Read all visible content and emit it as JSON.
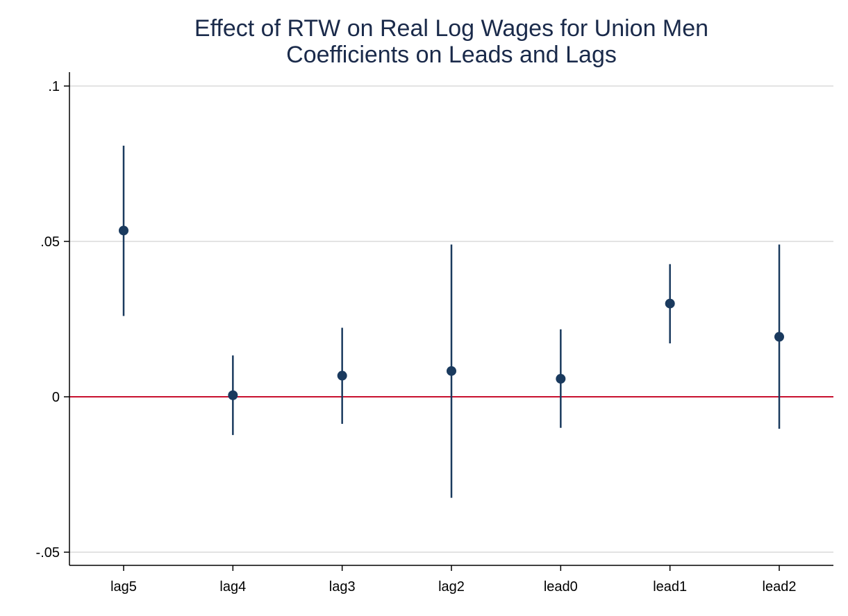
{
  "chart_data": {
    "type": "scatter",
    "title": "Effect of RTW on Real Log Wages for Union Men",
    "subtitle": "Coefficients on Leads and Lags",
    "xlabel": "",
    "ylabel": "",
    "categories": [
      "lag5",
      "lag4",
      "lag3",
      "lag2",
      "lead0",
      "lead1",
      "lead2"
    ],
    "values": [
      0.0535,
      0.0005,
      0.0068,
      0.0083,
      0.0058,
      0.03,
      0.0193
    ],
    "ci_lower": [
      0.026,
      -0.0123,
      -0.0087,
      -0.0325,
      -0.01,
      0.0172,
      -0.0103
    ],
    "ci_upper": [
      0.0808,
      0.0133,
      0.0222,
      0.049,
      0.0217,
      0.0427,
      0.049
    ],
    "ylim": [
      -0.054,
      0.106
    ],
    "yticks": [
      {
        "value": -0.05,
        "label": "-.05"
      },
      {
        "value": 0,
        "label": "0"
      },
      {
        "value": 0.05,
        "label": ".05"
      },
      {
        "value": 0.1,
        "label": ".1"
      }
    ],
    "reference_line": 0,
    "grid": true,
    "colors": {
      "marker": "#1a3a5e",
      "reference_line": "#c8102e",
      "grid": "#e3e3e3",
      "axis": "#000000",
      "title": "#1a2a4a"
    }
  }
}
